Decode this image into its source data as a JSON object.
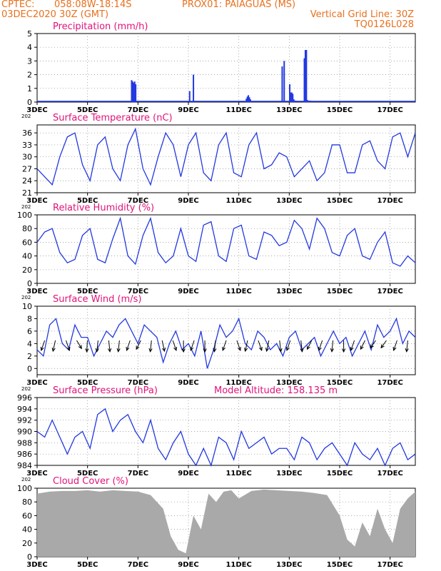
{
  "header": {
    "line1_left": "CPTEC:",
    "line1_coords": "058:08W-18:14S",
    "line1_station": "PROX01: PAIAGUAS (MS)",
    "line2_left": "03DEC2020 30Z (GMT)",
    "line2_right": "Vertical Grid Line: 30Z",
    "line3_right": "TQ0126L028",
    "title_color": "#e8701e"
  },
  "colors": {
    "series": "#2238e0",
    "title": "#e0137a",
    "cloud": "#a9a9a9",
    "arrow": "#000000",
    "grid": "#888888"
  },
  "x_axis": {
    "ticks": [
      "3DEC",
      "5DEC",
      "7DEC",
      "9DEC",
      "11DEC",
      "13DEC",
      "15DEC",
      "17DEC"
    ],
    "tick_days": [
      0,
      2,
      4,
      6,
      8,
      10,
      12,
      14
    ],
    "range_days": [
      0,
      15
    ],
    "year_stub": "202"
  },
  "chart_data": [
    {
      "type": "bar",
      "title": "Precipitation (mm/h)",
      "ylim": [
        0,
        5
      ],
      "yticks": [
        "0",
        "1",
        "2",
        "3",
        "4",
        "5"
      ],
      "x": [
        3.75,
        3.79,
        3.83,
        3.87,
        3.91,
        6.05,
        6.2,
        8.3,
        8.34,
        8.38,
        8.42,
        8.46,
        9.72,
        9.8,
        10.02,
        10.06,
        10.1,
        10.14,
        10.18,
        10.22,
        10.26,
        10.6,
        10.64,
        10.68,
        10.72,
        10.76,
        10.8,
        10.84
      ],
      "values": [
        1.6,
        1.5,
        1.4,
        1.5,
        1.3,
        0.8,
        2.0,
        0.25,
        0.4,
        0.5,
        0.35,
        0.2,
        2.6,
        3.0,
        1.3,
        0.7,
        0.7,
        0.6,
        0.2,
        0.1,
        0.1,
        3.2,
        3.8,
        3.8,
        0.15,
        0.1,
        0.1,
        0.1
      ]
    },
    {
      "type": "line",
      "title": "Surface Temperature (nC)",
      "ylim": [
        21,
        38
      ],
      "yticks": [
        "21",
        "24",
        "27",
        "30",
        "33",
        "36"
      ],
      "x": [
        0,
        0.3,
        0.6,
        0.9,
        1.2,
        1.5,
        1.8,
        2.1,
        2.4,
        2.7,
        3.0,
        3.3,
        3.6,
        3.9,
        4.2,
        4.5,
        4.8,
        5.1,
        5.4,
        5.7,
        6.0,
        6.3,
        6.6,
        6.9,
        7.2,
        7.5,
        7.8,
        8.1,
        8.4,
        8.7,
        9.0,
        9.3,
        9.6,
        9.9,
        10.2,
        10.5,
        10.8,
        11.1,
        11.4,
        11.7,
        12.0,
        12.3,
        12.6,
        12.9,
        13.2,
        13.5,
        13.8,
        14.1,
        14.4,
        14.7,
        15.0
      ],
      "values": [
        27,
        25,
        23,
        30,
        35,
        36,
        28,
        24,
        33,
        35,
        27,
        24,
        33,
        37,
        27,
        23,
        30,
        36,
        33,
        25,
        33,
        36,
        26,
        24,
        33,
        36,
        26,
        25,
        33,
        36,
        27,
        28,
        31,
        30,
        25,
        27,
        29,
        24,
        26,
        33,
        33,
        26,
        26,
        33,
        34,
        29,
        27,
        35,
        36,
        30,
        36
      ]
    },
    {
      "type": "line",
      "title": "Relative Humidity (%)",
      "ylim": [
        0,
        100
      ],
      "yticks": [
        "0",
        "20",
        "40",
        "60",
        "80",
        "100"
      ],
      "x": [
        0,
        0.3,
        0.6,
        0.9,
        1.2,
        1.5,
        1.8,
        2.1,
        2.4,
        2.7,
        3.0,
        3.3,
        3.6,
        3.9,
        4.2,
        4.5,
        4.8,
        5.1,
        5.4,
        5.7,
        6.0,
        6.3,
        6.6,
        6.9,
        7.2,
        7.5,
        7.8,
        8.1,
        8.4,
        8.7,
        9.0,
        9.3,
        9.6,
        9.9,
        10.2,
        10.5,
        10.8,
        11.1,
        11.4,
        11.7,
        12.0,
        12.3,
        12.6,
        12.9,
        13.2,
        13.5,
        13.8,
        14.1,
        14.4,
        14.7,
        15.0
      ],
      "values": [
        60,
        75,
        80,
        45,
        30,
        35,
        70,
        80,
        35,
        30,
        65,
        95,
        40,
        28,
        70,
        95,
        45,
        30,
        40,
        80,
        40,
        32,
        85,
        90,
        40,
        32,
        80,
        85,
        40,
        35,
        75,
        70,
        55,
        60,
        92,
        80,
        50,
        95,
        80,
        45,
        40,
        70,
        80,
        40,
        35,
        60,
        75,
        30,
        25,
        40,
        30
      ]
    },
    {
      "type": "line",
      "title": "Surface Wind (m/s)",
      "ylim": [
        -1,
        10
      ],
      "yticks": [
        "0",
        "2",
        "4",
        "6",
        "8",
        "10"
      ],
      "x": [
        0,
        0.25,
        0.5,
        0.75,
        1.0,
        1.25,
        1.5,
        1.75,
        2.0,
        2.25,
        2.5,
        2.75,
        3.0,
        3.25,
        3.5,
        3.75,
        4.0,
        4.25,
        4.5,
        4.75,
        5.0,
        5.25,
        5.5,
        5.75,
        6.0,
        6.25,
        6.5,
        6.75,
        7.0,
        7.25,
        7.5,
        7.75,
        8.0,
        8.25,
        8.5,
        8.75,
        9.0,
        9.25,
        9.5,
        9.75,
        10.0,
        10.25,
        10.5,
        10.75,
        11.0,
        11.25,
        11.5,
        11.75,
        12.0,
        12.25,
        12.5,
        12.75,
        13.0,
        13.25,
        13.5,
        13.75,
        14.0,
        14.25,
        14.5,
        14.75,
        15.0
      ],
      "values": [
        3,
        2,
        7,
        8,
        4,
        3,
        7,
        5,
        5,
        2,
        4,
        6,
        5,
        7,
        8,
        6,
        4,
        7,
        6,
        5,
        1,
        4,
        6,
        3,
        4,
        2,
        6,
        0,
        3,
        7,
        5,
        6,
        8,
        4,
        3,
        6,
        5,
        3,
        4,
        2,
        5,
        6,
        3,
        4,
        5,
        2,
        4,
        6,
        4,
        5,
        2,
        4,
        6,
        3,
        7,
        5,
        6,
        8,
        4,
        6,
        5
      ],
      "vector_angles_deg": [
        120,
        110,
        60,
        45,
        95,
        100,
        80,
        100,
        120,
        130,
        100,
        70,
        60,
        90,
        120,
        90,
        100,
        120,
        60,
        110,
        60,
        110,
        80,
        120,
        80,
        130,
        120,
        100,
        90,
        120,
        130,
        140,
        140,
        120,
        100
      ]
    },
    {
      "type": "line",
      "title": "Surface Pressure (hPa)",
      "annotation": "Model Altitude: 158.135 m",
      "ylim": [
        984,
        996
      ],
      "yticks": [
        "984",
        "986",
        "988",
        "990",
        "992",
        "994",
        "996"
      ],
      "x": [
        0,
        0.3,
        0.6,
        0.9,
        1.2,
        1.5,
        1.8,
        2.1,
        2.4,
        2.7,
        3.0,
        3.3,
        3.6,
        3.9,
        4.2,
        4.5,
        4.8,
        5.1,
        5.4,
        5.7,
        6.0,
        6.3,
        6.6,
        6.9,
        7.2,
        7.5,
        7.8,
        8.1,
        8.4,
        8.7,
        9.0,
        9.3,
        9.6,
        9.9,
        10.2,
        10.5,
        10.8,
        11.1,
        11.4,
        11.7,
        12.0,
        12.3,
        12.6,
        12.9,
        13.2,
        13.5,
        13.8,
        14.1,
        14.4,
        14.7,
        15.0
      ],
      "values": [
        990,
        989,
        992,
        989,
        986,
        989,
        990,
        987,
        993,
        994,
        990,
        992,
        993,
        990,
        988,
        992,
        987,
        985,
        988,
        990,
        986,
        984,
        987,
        984,
        989,
        988,
        985,
        990,
        987,
        988,
        989,
        986,
        987,
        987,
        985,
        989,
        988,
        985,
        987,
        988,
        986,
        984,
        988,
        986,
        985,
        987,
        984,
        987,
        988,
        985,
        986
      ]
    },
    {
      "type": "area",
      "title": "Cloud Cover (%)",
      "ylim": [
        0,
        100
      ],
      "yticks": [
        "0",
        "20",
        "40",
        "60",
        "80",
        "100"
      ],
      "x": [
        0,
        0.5,
        1.0,
        1.5,
        2.0,
        2.5,
        3.0,
        3.5,
        4.0,
        4.5,
        5.0,
        5.3,
        5.6,
        5.9,
        6.2,
        6.5,
        6.8,
        7.1,
        7.4,
        7.7,
        8.0,
        8.5,
        9.0,
        9.5,
        10.0,
        10.5,
        11.0,
        11.5,
        12.0,
        12.3,
        12.6,
        12.9,
        13.2,
        13.5,
        13.8,
        14.1,
        14.4,
        14.7,
        15.0
      ],
      "values": [
        92,
        95,
        96,
        96,
        97,
        95,
        97,
        96,
        95,
        90,
        70,
        30,
        10,
        5,
        60,
        40,
        92,
        80,
        95,
        97,
        85,
        96,
        98,
        97,
        96,
        95,
        93,
        90,
        60,
        25,
        15,
        50,
        30,
        70,
        40,
        20,
        70,
        85,
        95
      ]
    }
  ]
}
